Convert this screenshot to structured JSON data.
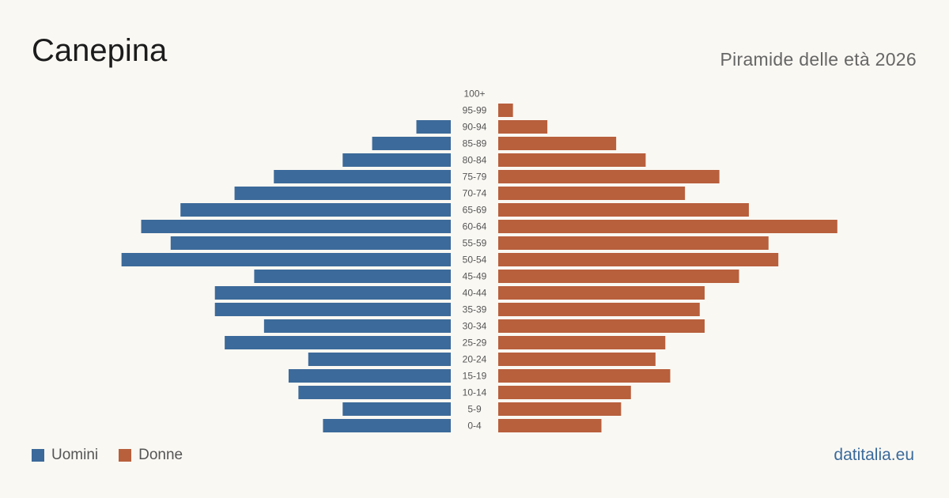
{
  "header": {
    "title": "Canepina",
    "subtitle": "Piramide delle età 2026"
  },
  "legend": {
    "men_label": "Uomini",
    "women_label": "Donne"
  },
  "footer": {
    "brand": "datitalia.eu"
  },
  "colors": {
    "men": "#3c6a9a",
    "women": "#b85f3c",
    "age_label": "#555555"
  },
  "chart_data": {
    "type": "bar",
    "orientation": "horizontal-pyramid",
    "title": "Canepina",
    "subtitle": "Piramide delle età 2026",
    "categories": [
      "100+",
      "95-99",
      "90-94",
      "85-89",
      "80-84",
      "75-79",
      "70-74",
      "65-69",
      "60-64",
      "55-59",
      "50-54",
      "45-49",
      "40-44",
      "35-39",
      "30-34",
      "25-29",
      "20-24",
      "15-19",
      "10-14",
      "5-9",
      "0-4"
    ],
    "series": [
      {
        "name": "Uomini",
        "side": "left",
        "values": [
          0,
          0,
          7,
          16,
          22,
          36,
          44,
          55,
          63,
          57,
          67,
          40,
          48,
          48,
          38,
          46,
          29,
          33,
          31,
          22,
          26
        ]
      },
      {
        "name": "Donne",
        "side": "right",
        "values": [
          0,
          3,
          10,
          24,
          30,
          45,
          38,
          51,
          69,
          55,
          57,
          49,
          42,
          41,
          42,
          34,
          32,
          35,
          27,
          25,
          21
        ]
      }
    ],
    "xlim": [
      0,
      70
    ],
    "grid": false,
    "legend": "bottom-left"
  }
}
